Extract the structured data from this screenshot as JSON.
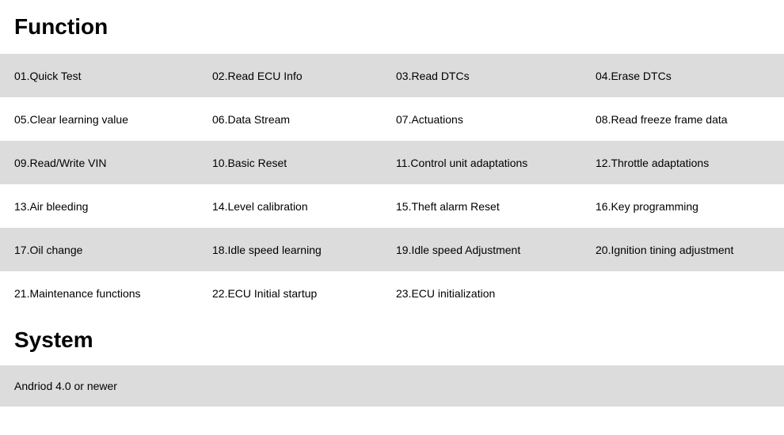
{
  "function_section": {
    "title": "Function",
    "rows": [
      {
        "bg": "alt",
        "cells": [
          "01.Quick Test",
          "02.Read ECU Info",
          "03.Read DTCs",
          "04.Erase DTCs"
        ]
      },
      {
        "bg": "plain",
        "cells": [
          "05.Clear learning value",
          "06.Data Stream",
          "07.Actuations",
          "08.Read freeze frame data"
        ]
      },
      {
        "bg": "alt",
        "cells": [
          "09.Read/Write VIN",
          "10.Basic Reset",
          "11.Control unit adaptations",
          "12.Throttle adaptations"
        ]
      },
      {
        "bg": "plain",
        "cells": [
          "13.Air bleeding",
          "14.Level calibration",
          "15.Theft alarm Reset",
          "16.Key programming"
        ]
      },
      {
        "bg": "alt",
        "cells": [
          "17.Oil change",
          "18.Idle speed learning",
          "19.Idle speed Adjustment",
          "20.Ignition tining adjustment"
        ]
      },
      {
        "bg": "plain",
        "cells": [
          "21.Maintenance functions",
          "22.ECU Initial startup",
          "23.ECU initialization",
          ""
        ]
      }
    ]
  },
  "system_section": {
    "title": "System",
    "requirement": "Andriod 4.0 or newer"
  },
  "colors": {
    "alt_row_bg": "#dcdcdc",
    "plain_row_bg": "#ffffff",
    "text_color": "#000000"
  }
}
